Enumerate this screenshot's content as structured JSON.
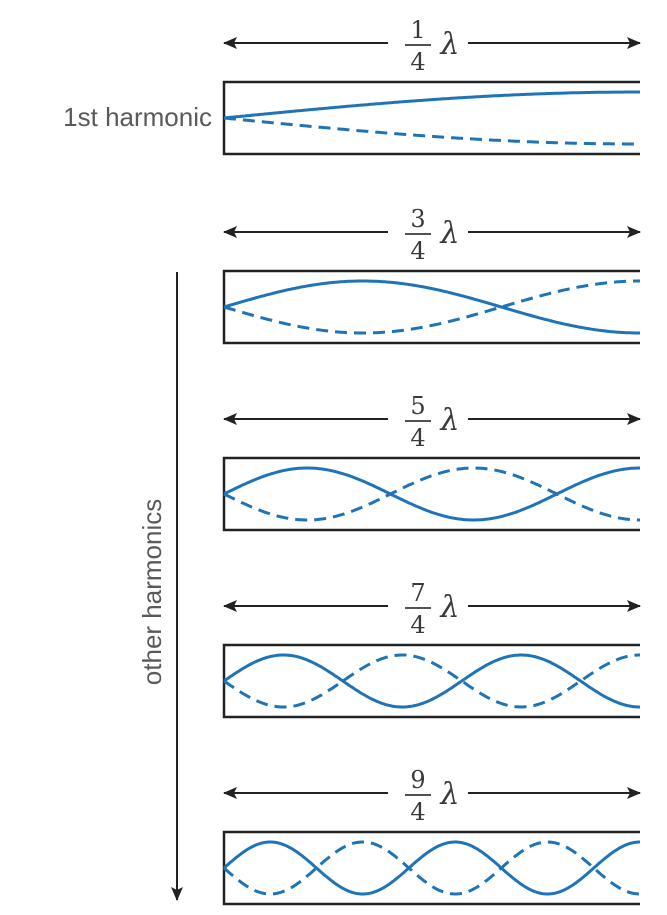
{
  "title_label": "1st harmonic",
  "side_label": "other harmonics",
  "lambda_symbol": "λ",
  "colors": {
    "wave": "#1f73b7",
    "tube": "#222222",
    "arrow": "#222222",
    "text": "#5a5a5a"
  },
  "harmonics": [
    {
      "name": "harmonic-1",
      "numerator": "1",
      "denominator": "4",
      "quarter_waves": 1
    },
    {
      "name": "harmonic-3",
      "numerator": "3",
      "denominator": "4",
      "quarter_waves": 3
    },
    {
      "name": "harmonic-5",
      "numerator": "5",
      "denominator": "4",
      "quarter_waves": 5
    },
    {
      "name": "harmonic-7",
      "numerator": "7",
      "denominator": "4",
      "quarter_waves": 7
    },
    {
      "name": "harmonic-9",
      "numerator": "9",
      "denominator": "4",
      "quarter_waves": 9
    }
  ]
}
